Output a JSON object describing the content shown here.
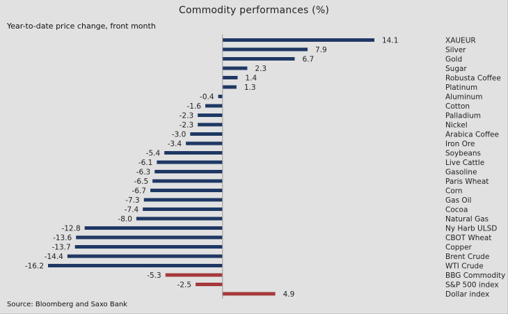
{
  "chart_data": {
    "type": "bar",
    "orientation": "horizontal",
    "title": "Commodity performances (%)",
    "subtitle": "Year-to-date price change, front month",
    "source": "Source: Bloomberg and Saxo Bank",
    "xlim": [
      -16.2,
      14.1
    ],
    "grid": false,
    "colors": {
      "commodity": "#1f3864",
      "index": "#a6393b"
    },
    "series": [
      {
        "name": "XAUEUR",
        "value": 14.1,
        "label": "14.1",
        "group": "commodity"
      },
      {
        "name": "Silver",
        "value": 7.9,
        "label": "7.9",
        "group": "commodity"
      },
      {
        "name": "Gold",
        "value": 6.7,
        "label": "6.7",
        "group": "commodity"
      },
      {
        "name": "Sugar",
        "value": 2.3,
        "label": "2.3",
        "group": "commodity"
      },
      {
        "name": "Robusta Coffee",
        "value": 1.4,
        "label": "1.4",
        "group": "commodity"
      },
      {
        "name": "Platinum",
        "value": 1.3,
        "label": "1.3",
        "group": "commodity"
      },
      {
        "name": "Aluminum",
        "value": -0.4,
        "label": "-0.4",
        "group": "commodity"
      },
      {
        "name": "Cotton",
        "value": -1.6,
        "label": "-1.6",
        "group": "commodity"
      },
      {
        "name": "Palladium",
        "value": -2.3,
        "label": "-2.3",
        "group": "commodity"
      },
      {
        "name": "Nickel",
        "value": -2.3,
        "label": "-2.3",
        "group": "commodity"
      },
      {
        "name": "Arabica Coffee",
        "value": -3.0,
        "label": "-3.0",
        "group": "commodity"
      },
      {
        "name": "Iron Ore",
        "value": -3.4,
        "label": "-3.4",
        "group": "commodity"
      },
      {
        "name": "Soybeans",
        "value": -5.4,
        "label": "-5.4",
        "group": "commodity"
      },
      {
        "name": "Live Cattle",
        "value": -6.1,
        "label": "-6.1",
        "group": "commodity"
      },
      {
        "name": "Gasoline",
        "value": -6.3,
        "label": "-6.3",
        "group": "commodity"
      },
      {
        "name": "Paris Wheat",
        "value": -6.5,
        "label": "-6.5",
        "group": "commodity"
      },
      {
        "name": "Corn",
        "value": -6.7,
        "label": "-6.7",
        "group": "commodity"
      },
      {
        "name": "Gas Oil",
        "value": -7.3,
        "label": "-7.3",
        "group": "commodity"
      },
      {
        "name": "Cocoa",
        "value": -7.4,
        "label": "-7.4",
        "group": "commodity"
      },
      {
        "name": "Natural Gas",
        "value": -8.0,
        "label": "-8.0",
        "group": "commodity"
      },
      {
        "name": "Ny Harb ULSD",
        "value": -12.8,
        "label": "-12.8",
        "group": "commodity"
      },
      {
        "name": "CBOT Wheat",
        "value": -13.6,
        "label": "-13.6",
        "group": "commodity"
      },
      {
        "name": "Copper",
        "value": -13.7,
        "label": "-13.7",
        "group": "commodity"
      },
      {
        "name": "Brent Crude",
        "value": -14.4,
        "label": "-14.4",
        "group": "commodity"
      },
      {
        "name": "WTI Crude",
        "value": -16.2,
        "label": "-16.2",
        "group": "commodity"
      },
      {
        "name": "BBG Commodity",
        "value": -5.3,
        "label": "-5.3",
        "group": "index"
      },
      {
        "name": "S&P 500 index",
        "value": -2.5,
        "label": "-2.5",
        "group": "index"
      },
      {
        "name": "Dollar index",
        "value": 4.9,
        "label": "4.9",
        "group": "index"
      }
    ]
  }
}
